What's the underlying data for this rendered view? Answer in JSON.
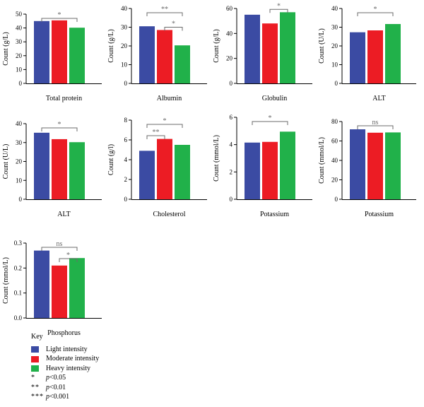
{
  "colors": {
    "light": "#3b4ba3",
    "moderate": "#ec1c24",
    "heavy": "#21b14a",
    "bracket": "#6b6b6b"
  },
  "chart_data": [
    {
      "type": "bar",
      "title": "Total protein",
      "ylabel": "Count (g/L)",
      "ylim": [
        0,
        50
      ],
      "ticks": [
        "0",
        "10",
        "20",
        "30",
        "40",
        "50"
      ],
      "values": [
        45,
        45.5,
        40.2
      ],
      "sig": [
        {
          "from": 0,
          "to": 2,
          "label": "*"
        }
      ]
    },
    {
      "type": "bar",
      "title": "Albumin",
      "ylabel": "Count (g/L)",
      "ylim": [
        0,
        40
      ],
      "ticks": [
        "0",
        "10",
        "20",
        "30",
        "40"
      ],
      "values": [
        30.5,
        28.5,
        20.3
      ],
      "sig": [
        {
          "from": 0,
          "to": 2,
          "label": "**"
        },
        {
          "from": 1,
          "to": 2,
          "label": "*"
        }
      ]
    },
    {
      "type": "bar",
      "title": "Globulin",
      "ylabel": "Count (g/L)",
      "ylim": [
        0,
        60
      ],
      "ticks": [
        "0",
        "20",
        "40",
        "60"
      ],
      "values": [
        55,
        48,
        57
      ],
      "sig": [
        {
          "from": 1,
          "to": 2,
          "label": "*"
        }
      ]
    },
    {
      "type": "bar",
      "title": "ALT",
      "ylabel": "Count (U/L)",
      "ylim": [
        0,
        40
      ],
      "ticks": [
        "0",
        "10",
        "20",
        "30",
        "40"
      ],
      "values": [
        27.3,
        28.3,
        31.7
      ],
      "sig": [
        {
          "from": 0,
          "to": 2,
          "label": "*"
        }
      ]
    },
    {
      "type": "bar",
      "title": "ALT",
      "ylabel": "Count (U/L)",
      "ylim": [
        0,
        40
      ],
      "ticks": [
        "0",
        "10",
        "20",
        "30",
        "40"
      ],
      "values": [
        35.2,
        31.8,
        30.2
      ],
      "sig": [
        {
          "from": 0,
          "to": 2,
          "label": "*"
        }
      ]
    },
    {
      "type": "bar",
      "title": "Cholesterol",
      "ylabel": "Count (g/l)",
      "ylim": [
        0,
        8
      ],
      "ticks": [
        "0",
        "2",
        "4",
        "6",
        "8"
      ],
      "values": [
        4.9,
        6.1,
        5.5
      ],
      "sig": [
        {
          "from": 0,
          "to": 2,
          "label": "*"
        },
        {
          "from": 0,
          "to": 1,
          "label": "**"
        }
      ]
    },
    {
      "type": "bar",
      "title": "Potassium",
      "ylabel": "Count (mmol/L)",
      "ylim": [
        0,
        6
      ],
      "ticks": [
        "0",
        "2",
        "4",
        "6"
      ],
      "values": [
        4.15,
        4.2,
        4.95
      ],
      "sig": [
        {
          "from": 0,
          "to": 2,
          "label": "*"
        }
      ]
    },
    {
      "type": "bar",
      "title": "Potassium",
      "ylabel": "Count (mmol/L)",
      "ylim": [
        0,
        80
      ],
      "ticks": [
        "0",
        "20",
        "40",
        "60",
        "80"
      ],
      "values": [
        72,
        68.5,
        68.8
      ],
      "sig": [
        {
          "from": 0,
          "to": 2,
          "label": "ns"
        }
      ]
    },
    {
      "type": "bar",
      "title": "Phosphorus",
      "ylabel": "Count (mmol/L)",
      "ylim": [
        0,
        0.3
      ],
      "ticks": [
        "0.0",
        "0.1",
        "0.2",
        "0.3"
      ],
      "values": [
        0.27,
        0.21,
        0.24
      ],
      "sig": [
        {
          "from": 0,
          "to": 2,
          "label": "ns"
        },
        {
          "from": 1,
          "to": 2,
          "label": "*"
        }
      ]
    }
  ],
  "key": {
    "title": "Key",
    "groups": [
      "Light intensity",
      "Moderate intensity",
      "Heavy intensity"
    ],
    "pvalues": [
      {
        "symbol": "*",
        "p": "p",
        "rest": "<0.05"
      },
      {
        "symbol": "**",
        "p": "p",
        "rest": "<0.01"
      },
      {
        "symbol": "***",
        "p": "p",
        "rest": "<0.001"
      }
    ]
  }
}
